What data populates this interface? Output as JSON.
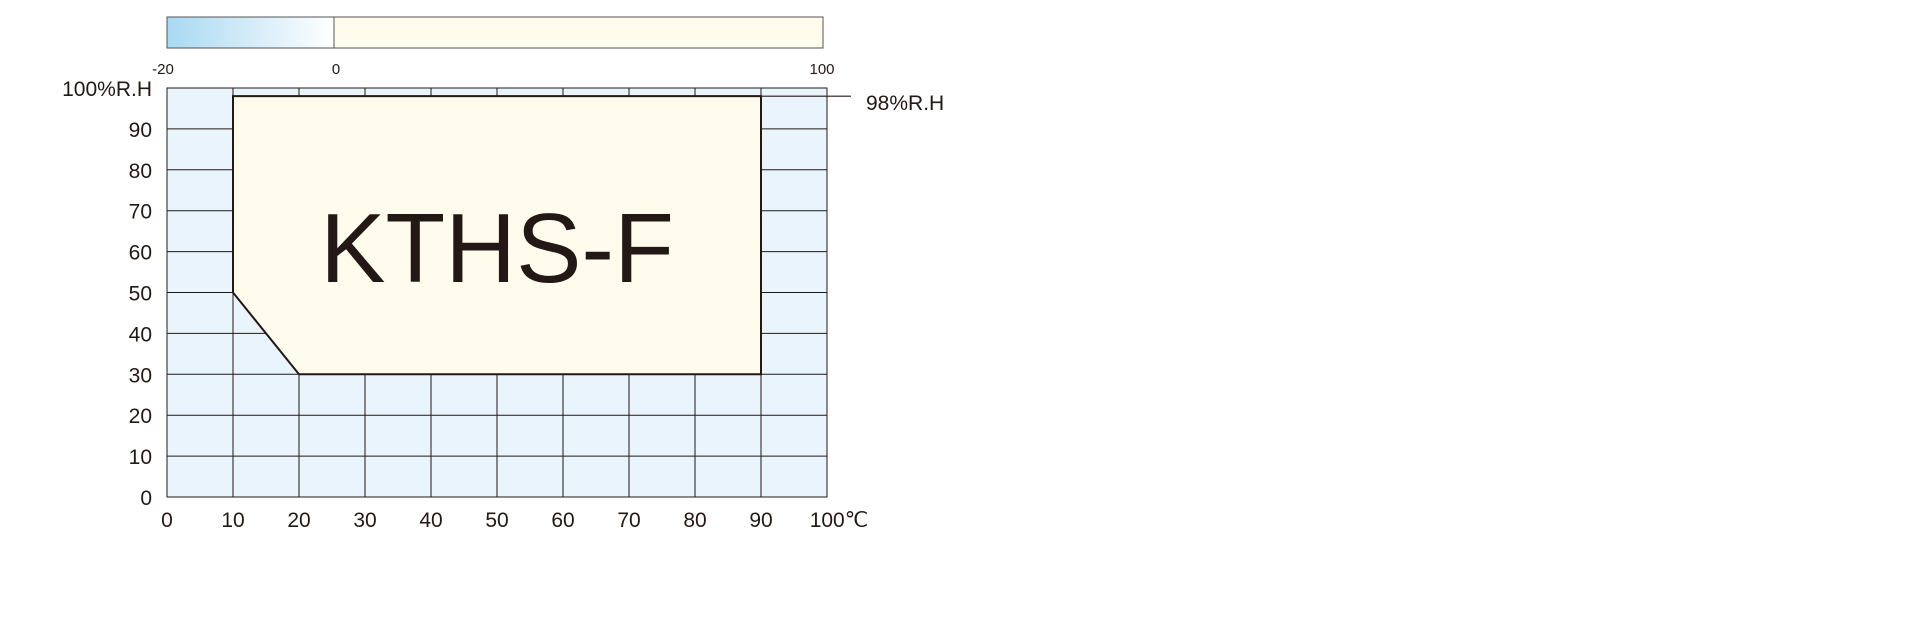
{
  "chart_data": {
    "type": "area",
    "title": "KTHS-F",
    "xlabel": "℃",
    "ylabel": "%R.H",
    "xlim": [
      0,
      100
    ],
    "ylim": [
      0,
      100
    ],
    "grid": true,
    "x_ticks": [
      "0",
      "10",
      "20",
      "30",
      "40",
      "50",
      "60",
      "70",
      "80",
      "90",
      "100℃"
    ],
    "y_ticks": [
      "0",
      "10",
      "20",
      "30",
      "40",
      "50",
      "60",
      "70",
      "80",
      "90",
      "100%R.H"
    ],
    "region": [
      {
        "x": 10,
        "y": 50
      },
      {
        "x": 10,
        "y": 98
      },
      {
        "x": 90,
        "y": 98
      },
      {
        "x": 90,
        "y": 30
      },
      {
        "x": 20,
        "y": 30
      }
    ],
    "annotation": "98%R.H",
    "colorbar": {
      "labels": [
        "-20",
        "0",
        "100"
      ],
      "cold_color": "#a9d9f2",
      "warm_color": "#fffbed"
    },
    "colors": {
      "plot_bg": "#eaf4fc",
      "region_fill": "#fffbed",
      "line": "#231815"
    }
  }
}
